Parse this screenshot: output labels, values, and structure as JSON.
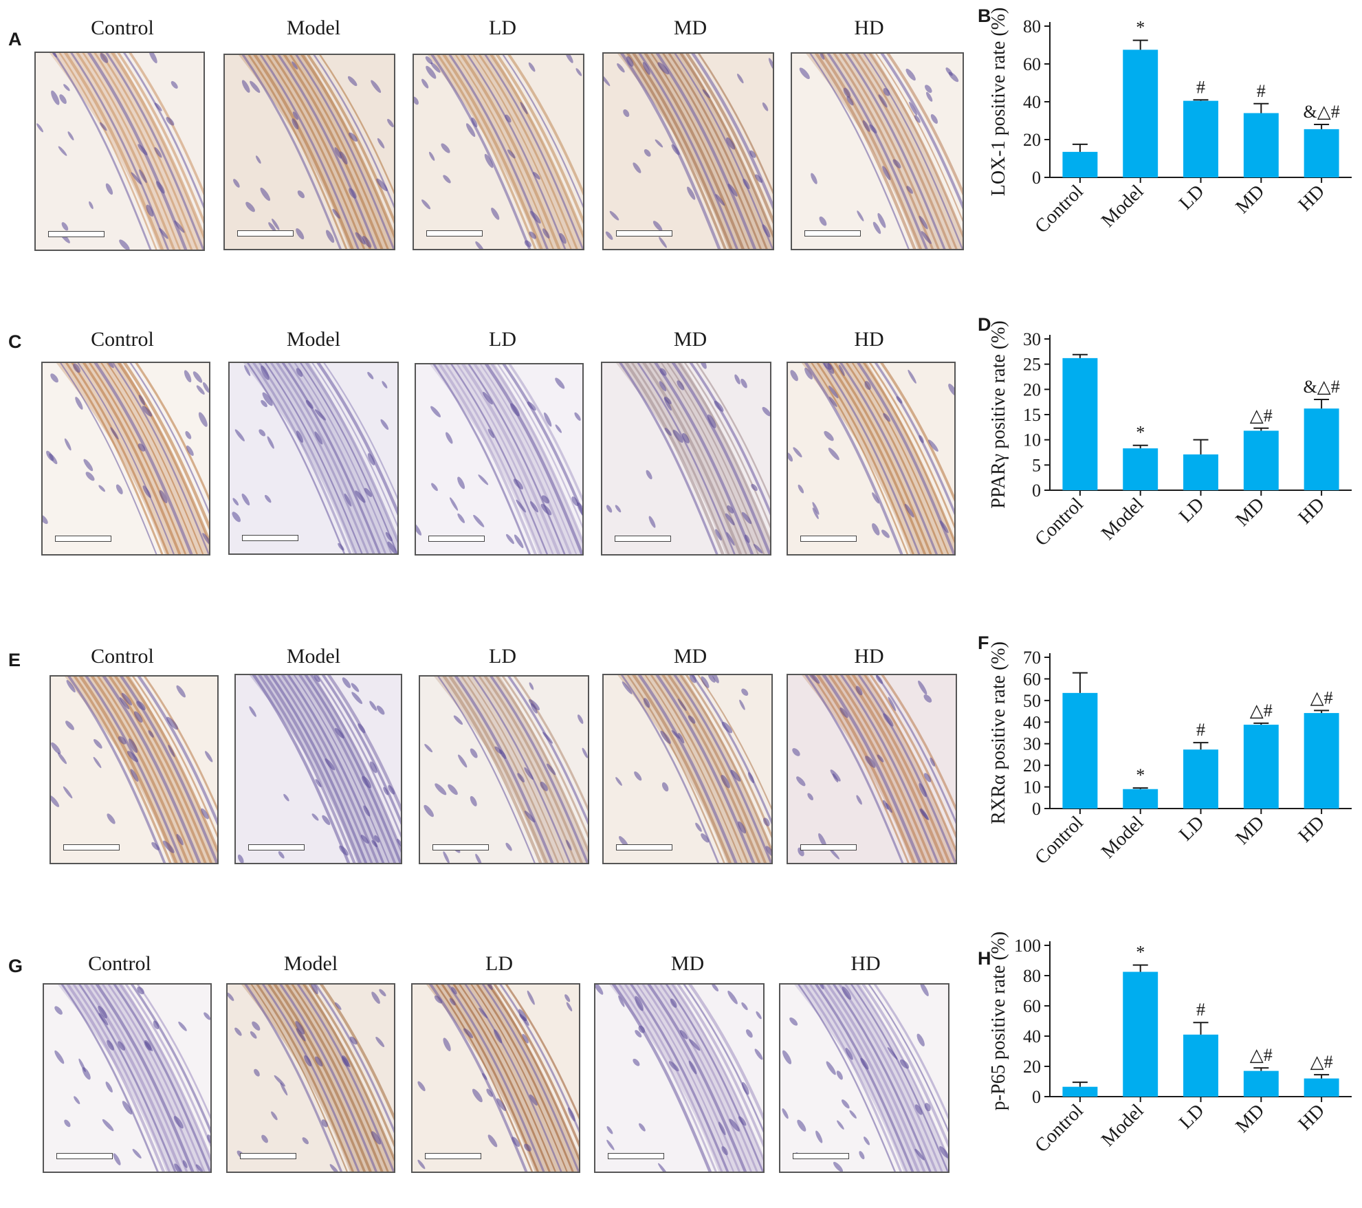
{
  "group_labels": [
    "Control",
    "Model",
    "LD",
    "MD",
    "HD"
  ],
  "rows": [
    {
      "image_panel": "A",
      "chart_panel": "B",
      "stain": [
        "#c89060",
        "#b07440",
        "#c08a5a",
        "#a06a44",
        "#b88058"
      ],
      "bg": [
        "#f5efea",
        "#efe4da",
        "#f3ebe3",
        "#f1e6dc",
        "#f6f0ea"
      ]
    },
    {
      "image_panel": "C",
      "chart_panel": "D",
      "stain": [
        "#b8743c",
        "#8f84b8",
        "#a99cc6",
        "#a08a8c",
        "#b5723c"
      ],
      "bg": [
        "#f8f3ee",
        "#eeebf3",
        "#f4f1f6",
        "#f1ecee",
        "#f6efe8"
      ]
    },
    {
      "image_panel": "E",
      "chart_panel": "F",
      "stain": [
        "#b87a48",
        "#7a6aa8",
        "#b08a70",
        "#b07a50",
        "#b8784a"
      ],
      "bg": [
        "#f6efe8",
        "#eeeaf2",
        "#f3eeea",
        "#f4ede6",
        "#efe6e8"
      ]
    },
    {
      "image_panel": "G",
      "chart_panel": "H",
      "stain": [
        "#9c8cc0",
        "#a06838",
        "#9a5a2c",
        "#9f90c0",
        "#9a8cc0"
      ],
      "bg": [
        "#f6f3f5",
        "#f1e8e0",
        "#f4ece4",
        "#f5f2f5",
        "#f6f3f5"
      ]
    }
  ],
  "chart_data": [
    {
      "type": "bar",
      "panel": "B",
      "ylabel": "LOX-1 positive rate (%)",
      "categories": [
        "Control",
        "Model",
        "LD",
        "MD",
        "HD"
      ],
      "values": [
        13.5,
        67.5,
        40.5,
        34,
        25.5
      ],
      "errors": [
        4,
        5,
        0.5,
        5,
        2.5
      ],
      "sig": [
        "",
        "*",
        "#",
        "#",
        "&△#"
      ],
      "ylim": [
        0,
        80
      ],
      "yticks": [
        0,
        20,
        40,
        60,
        80
      ],
      "bar_color": "#00adef"
    },
    {
      "type": "bar",
      "panel": "D",
      "ylabel": "PPARγ positive rate (%)",
      "categories": [
        "Control",
        "Model",
        "LD",
        "MD",
        "HD"
      ],
      "values": [
        26.2,
        8.3,
        7.1,
        11.8,
        16.2
      ],
      "errors": [
        0.7,
        0.6,
        2.9,
        0.5,
        1.8
      ],
      "sig": [
        "",
        "*",
        "",
        "△#",
        "&△#"
      ],
      "ylim": [
        0,
        30
      ],
      "yticks": [
        0,
        5,
        10,
        15,
        20,
        25,
        30
      ],
      "bar_color": "#00adef"
    },
    {
      "type": "bar",
      "panel": "F",
      "ylabel": "RXRα positive rate (%)",
      "categories": [
        "Control",
        "Model",
        "LD",
        "MD",
        "HD"
      ],
      "values": [
        53.5,
        9,
        27.3,
        38.8,
        44.2
      ],
      "errors": [
        9.3,
        0.5,
        3.2,
        0.7,
        1.2
      ],
      "sig": [
        "",
        "*",
        "#",
        "△#",
        "△#"
      ],
      "ylim": [
        0,
        70
      ],
      "yticks": [
        0,
        10,
        20,
        30,
        40,
        50,
        60,
        70
      ],
      "bar_color": "#00adef"
    },
    {
      "type": "bar",
      "panel": "H",
      "ylabel": "p-P65 positive rate (%)",
      "categories": [
        "Control",
        "Model",
        "LD",
        "MD",
        "HD"
      ],
      "values": [
        6.5,
        82.5,
        41,
        17,
        12
      ],
      "errors": [
        3,
        4.5,
        8,
        2,
        2.5
      ],
      "sig": [
        "",
        "*",
        "#",
        "△#",
        "△#"
      ],
      "ylim": [
        0,
        100
      ],
      "yticks": [
        0,
        20,
        40,
        60,
        80,
        100
      ],
      "bar_color": "#00adef"
    }
  ]
}
